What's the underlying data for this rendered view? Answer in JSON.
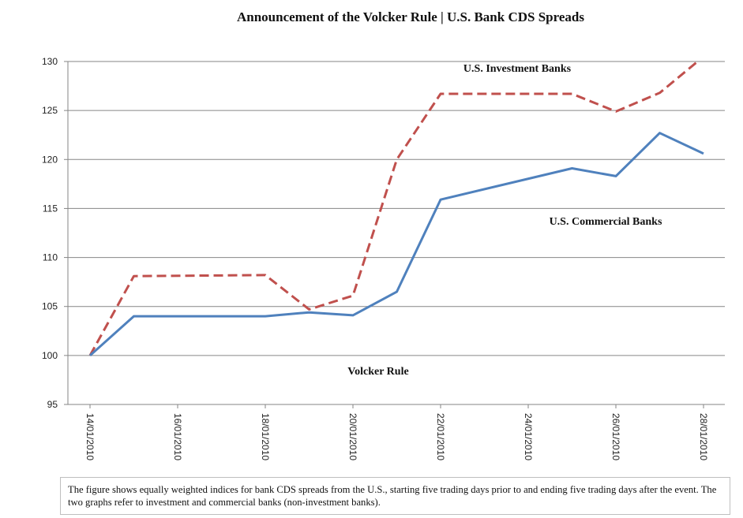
{
  "chart_data": {
    "type": "line",
    "title": "Announcement  of the Volcker Rule  |  U.S. Bank CDS Spreads",
    "xlabel": "",
    "ylabel": "",
    "ylim": [
      95,
      130
    ],
    "yticks": [
      "95",
      "100",
      "105",
      "110",
      "115",
      "120",
      "125",
      "130"
    ],
    "x_tick_labels": [
      "14/01/2010",
      "16/01/2010",
      "18/01/2010",
      "20/01/2010",
      "22/01/2010",
      "24/01/2010",
      "26/01/2010",
      "28/01/2010"
    ],
    "grid": true,
    "legend": "none",
    "x": [
      "14/01/2010",
      "15/01/2010",
      "18/01/2010",
      "19/01/2010",
      "20/01/2010",
      "21/01/2010",
      "22/01/2010",
      "25/01/2010",
      "26/01/2010",
      "27/01/2010",
      "28/01/2010"
    ],
    "series": [
      {
        "name": "U.S. Investment Banks",
        "color": "#c0504d",
        "dash": "dashed",
        "values": [
          100,
          108.1,
          108.2,
          104.7,
          106.1,
          120,
          126.7,
          126.7,
          124.9,
          126.8,
          130.5
        ]
      },
      {
        "name": "U.S. Commercial Banks",
        "color": "#4f81bd",
        "dash": "solid",
        "values": [
          100,
          104,
          104,
          104.4,
          104.1,
          106.5,
          115.9,
          119.1,
          118.3,
          122.7,
          120.6
        ]
      }
    ],
    "annotations": {
      "investment": "U.S. Investment Banks",
      "commercial": "U.S. Commercial Banks",
      "event": "Volcker Rule"
    }
  },
  "caption": "The figure shows equally weighted indices for bank CDS spreads from the U.S., starting five trading days prior to and ending five trading days after the event. The two graphs refer to investment and commercial banks (non-investment banks)."
}
